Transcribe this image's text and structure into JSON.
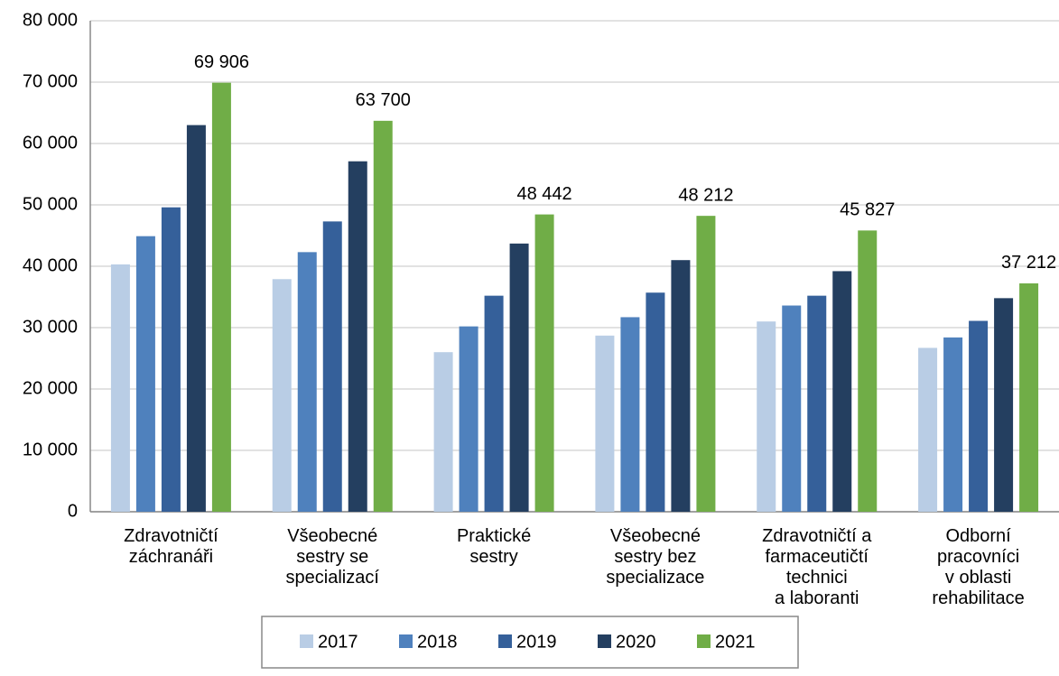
{
  "chart_data": {
    "type": "bar",
    "categories": [
      "Zdravotničtí\nzáchranáři",
      "Všeobecné\nsestry se\nspecializací",
      "Praktické\nsestry",
      "Všeobecné\nsestry bez\nspecializace",
      "Zdravotničtí a\nfarmaceutičtí\ntechnici\na laboranti",
      "Odborní\npracovníci\nv oblasti\nrehabilitace"
    ],
    "series": [
      {
        "name": "2017",
        "color": "#b9cde5",
        "values": [
          40300,
          37900,
          26000,
          28700,
          31000,
          26700
        ]
      },
      {
        "name": "2018",
        "color": "#4f81bd",
        "values": [
          44900,
          42300,
          30200,
          31700,
          33600,
          28400
        ]
      },
      {
        "name": "2019",
        "color": "#35609a",
        "values": [
          49600,
          47300,
          35200,
          35700,
          35200,
          31100
        ]
      },
      {
        "name": "2020",
        "color": "#243f60",
        "values": [
          63000,
          57100,
          43700,
          41000,
          39200,
          34800
        ]
      },
      {
        "name": "2021",
        "color": "#70ad47",
        "values": [
          69906,
          63700,
          48442,
          48212,
          45827,
          37212
        ],
        "value_labels": [
          "69 906",
          "63 700",
          "48 442",
          "48 212",
          "45 827",
          "37 212"
        ]
      }
    ],
    "ylim": [
      0,
      80000
    ],
    "yticks": [
      0,
      {
        "value": 10000,
        "label": "10 000"
      },
      {
        "value": 20000,
        "label": "20 000"
      },
      {
        "value": 30000,
        "label": "30 000"
      },
      {
        "value": 40000,
        "label": "40 000"
      },
      {
        "value": 50000,
        "label": "50 000"
      },
      {
        "value": 60000,
        "label": "60 000"
      },
      {
        "value": 70000,
        "label": "70 000"
      },
      {
        "value": 80000,
        "label": "80 000"
      }
    ],
    "grid": true,
    "legend": "bottom"
  }
}
